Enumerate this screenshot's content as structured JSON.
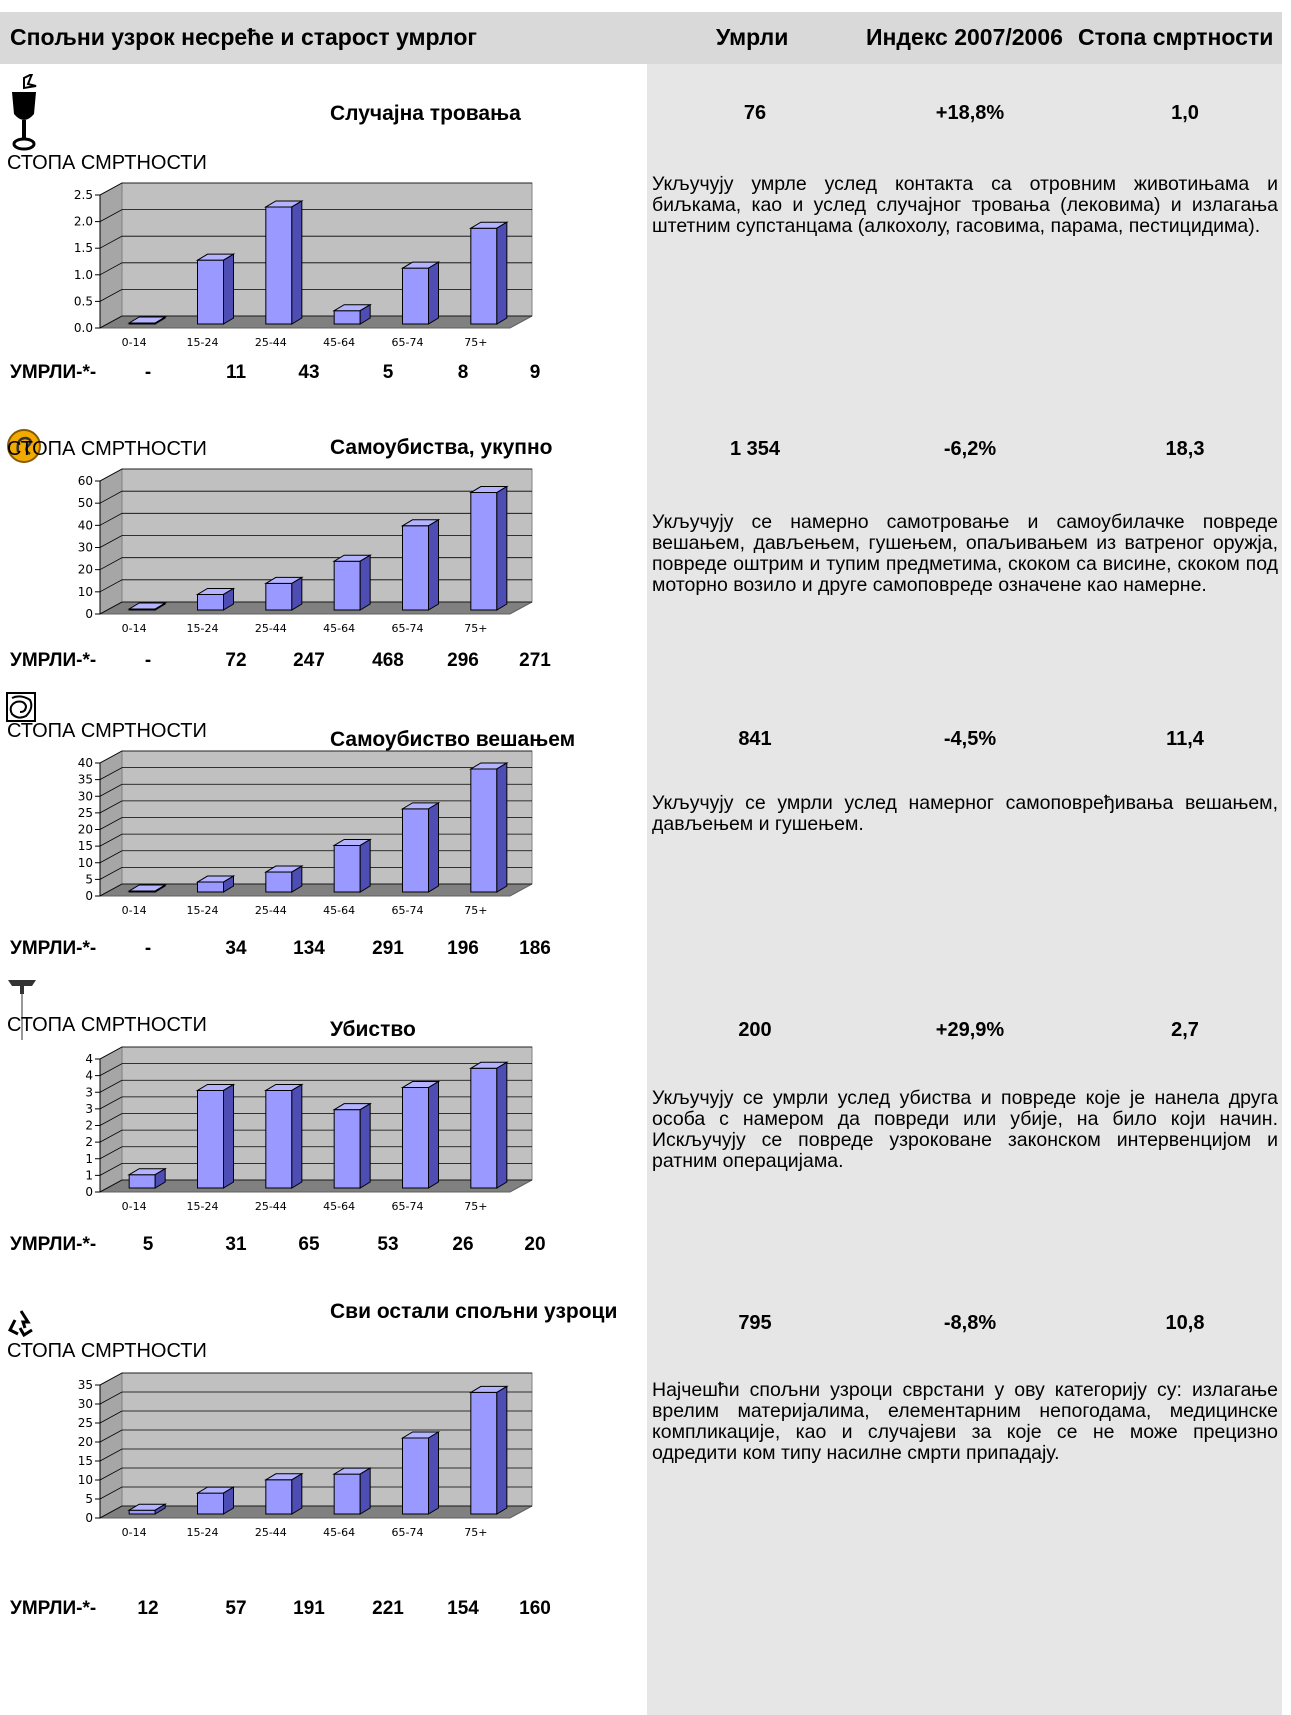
{
  "header": {
    "title": "Спољни узрок несреће и старост умрлог",
    "col_deaths": "Умрли",
    "col_index": "Индекс 2007/2006",
    "col_rate": "Стопа смртности"
  },
  "sections": [
    {
      "icon": "poison-icon",
      "title": "Случајна тровања",
      "rate_label": "СТОПА СМРТНОСТИ",
      "deaths": "76",
      "index": "+18,8%",
      "rate": "1,0",
      "description": "Укључују умрле услед контакта са отровним животињама и биљкама, као и услед случајног тровања (лековима) и излагања штетним супстанцама (алкохолу, гасовима, парама, пестицидима).",
      "deaths_label": "УМРЛИ-*-",
      "deaths_by_age": [
        "-",
        "11",
        "43",
        "5",
        "8",
        "9"
      ]
    },
    {
      "icon": "suicide-icon",
      "title": "Самоубиства, укупно",
      "rate_label": "СТОПА СМРТНОСТИ",
      "deaths": "1 354",
      "index": "-6,2%",
      "rate": "18,3",
      "description": "Укључују се намерно самотровање и самоубилачке повреде вешањем, дављењем, гушењем, опаљивањем из ватреног оружја, повреде оштрим и тупим предметима, скоком са висине, скоком под моторно возило и друге самоповреде означене као намерне.",
      "deaths_label": "УМРЛИ-*-",
      "deaths_by_age": [
        "-",
        "72",
        "247",
        "468",
        "296",
        "271"
      ]
    },
    {
      "icon": "hanging-icon",
      "title": "Самоубиство вешањем",
      "rate_label": "СТОПА СМРТНОСТИ",
      "deaths": "841",
      "index": "-4,5%",
      "rate": "11,4",
      "description": "Укључују се умрли услед намерног самоповређивања вешањем, дављењем и гушењем.",
      "deaths_label": "УМРЛИ-*-",
      "deaths_by_age": [
        "-",
        "34",
        "134",
        "291",
        "196",
        "186"
      ]
    },
    {
      "icon": "homicide-icon",
      "title": "Убиство",
      "rate_label": "СТОПА СМРТНОСТИ",
      "deaths": "200",
      "index": "+29,9%",
      "rate": "2,7",
      "description": "Укључују се умрли услед убиства и повреде које је нанела друга особа с намером да повреди или убије, на било који начин. Искључују се повреде узроковане законском интервенцијом и ратним операцијама.",
      "deaths_label": "УМРЛИ-*-",
      "deaths_by_age": [
        "5",
        "31",
        "65",
        "53",
        "26",
        "20"
      ]
    },
    {
      "icon": "recycle-icon",
      "title": "Сви остали спољни узроци",
      "rate_label": "СТОПА СМРТНОСТИ",
      "deaths": "795",
      "index": "-8,8%",
      "rate": "10,8",
      "description": "Најчешћи спољни узроци сврстани у ову категорију су: излагање врелим материјалима, елементарним непогодама, медицинске компликације, као и случајеви за које се не може прецизно одредити ком типу насилне смрти припадају.",
      "deaths_label": "УМРЛИ-*-",
      "deaths_by_age": [
        "12",
        "57",
        "191",
        "221",
        "154",
        "160"
      ]
    }
  ],
  "chart_data": [
    {
      "type": "bar",
      "categories": [
        "0-14",
        "15-24",
        "25-44",
        "45-64",
        "65-74",
        "75+"
      ],
      "values": [
        0.0,
        1.2,
        2.2,
        0.25,
        1.05,
        1.8
      ],
      "yticks": [
        "0.0",
        "0.5",
        "1.0",
        "1.5",
        "2.0",
        "2.5"
      ],
      "ylim": [
        0,
        2.5
      ],
      "bar_color": "#9999ff"
    },
    {
      "type": "bar",
      "categories": [
        "0-14",
        "15-24",
        "25-44",
        "45-64",
        "65-74",
        "75+"
      ],
      "values": [
        0,
        7,
        12,
        22,
        38,
        53
      ],
      "yticks": [
        "0",
        "10",
        "20",
        "30",
        "40",
        "50",
        "60"
      ],
      "ylim": [
        0,
        60
      ],
      "bar_color": "#9999ff"
    },
    {
      "type": "bar",
      "categories": [
        "0-14",
        "15-24",
        "25-44",
        "45-64",
        "65-74",
        "75+"
      ],
      "values": [
        0,
        3,
        6,
        14,
        25,
        37
      ],
      "yticks": [
        "0",
        "5",
        "10",
        "15",
        "20",
        "25",
        "30",
        "35",
        "40"
      ],
      "ylim": [
        0,
        40
      ],
      "bar_color": "#9999ff"
    },
    {
      "type": "bar",
      "categories": [
        "0-14",
        "15-24",
        "25-44",
        "45-64",
        "65-74",
        "75+"
      ],
      "values": [
        0.45,
        3.3,
        3.3,
        2.65,
        3.4,
        4.05
      ],
      "yticks": [
        "0",
        "1",
        "1",
        "2",
        "2",
        "3",
        "3",
        "4",
        "4"
      ],
      "ylim": [
        0,
        4.5
      ],
      "bar_color": "#9999ff"
    },
    {
      "type": "bar",
      "categories": [
        "0-14",
        "15-24",
        "25-44",
        "45-64",
        "65-74",
        "75+"
      ],
      "values": [
        1,
        5.5,
        9,
        10.5,
        20,
        32
      ],
      "yticks": [
        "0",
        "5",
        "10",
        "15",
        "20",
        "25",
        "30",
        "35"
      ],
      "ylim": [
        0,
        35
      ],
      "bar_color": "#9999ff"
    }
  ]
}
